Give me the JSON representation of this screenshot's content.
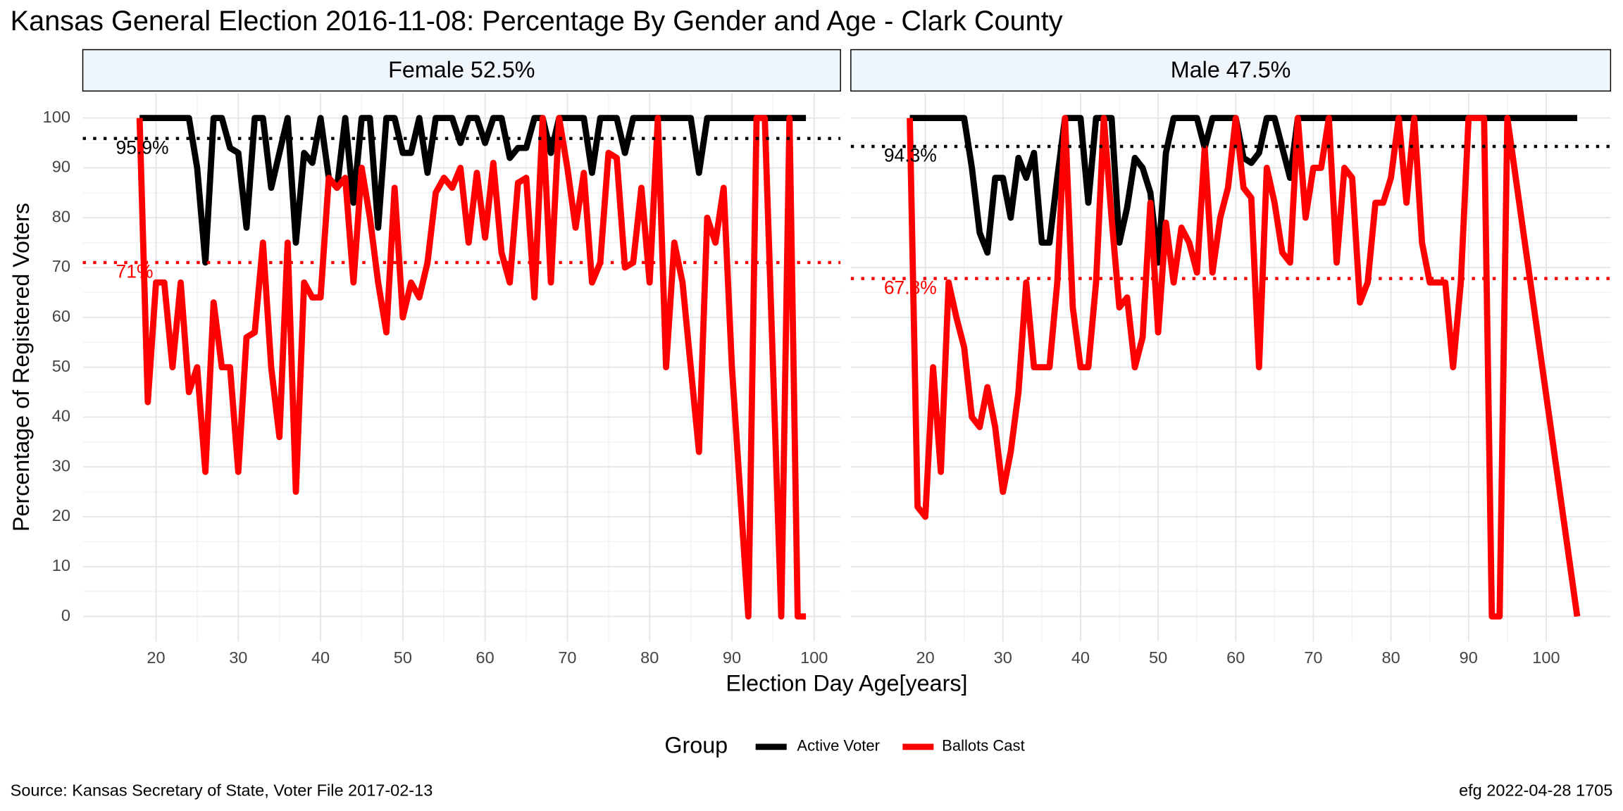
{
  "title": "Kansas General Election 2016-11-08:  Percentage By Gender and Age - Clark County",
  "x_label": "Election Day Age[years]",
  "y_label": "Percentage of Registered Voters",
  "legend_title": "Group",
  "source": "Source:  Kansas Secretary of State, Voter File  2017-02-13",
  "stamp": "efg 2022-04-28 1705",
  "chart_data": [
    {
      "type": "line",
      "title": "Female 52.5%",
      "xlim": [
        11.1,
        103.2
      ],
      "ylim": [
        -5,
        105
      ],
      "xticks": [
        20,
        30,
        40,
        50,
        60,
        70,
        80,
        90,
        100
      ],
      "yticks": [
        0,
        10,
        20,
        30,
        40,
        50,
        60,
        70,
        80,
        90,
        100
      ],
      "grid": true,
      "hlines": [
        {
          "value": 95.9,
          "label": "95.9%",
          "color": "#000000"
        },
        {
          "value": 71,
          "label": "71%",
          "color": "#ff0000"
        }
      ],
      "series": [
        {
          "name": "Active Voter",
          "color": "#000000",
          "x": [
            18,
            19,
            20,
            21,
            22,
            23,
            24,
            25,
            26,
            27,
            28,
            29,
            30,
            31,
            32,
            33,
            34,
            35,
            36,
            37,
            38,
            39,
            40,
            41,
            42,
            43,
            44,
            45,
            46,
            47,
            48,
            49,
            50,
            51,
            52,
            53,
            54,
            55,
            56,
            57,
            58,
            59,
            60,
            61,
            62,
            63,
            64,
            65,
            66,
            67,
            68,
            69,
            70,
            71,
            72,
            73,
            74,
            75,
            76,
            77,
            78,
            79,
            80,
            81,
            82,
            83,
            84,
            85,
            86,
            87,
            88,
            89,
            90,
            91,
            92,
            93,
            94,
            95,
            96,
            97,
            98,
            99
          ],
          "values": [
            100,
            100,
            100,
            100,
            100,
            100,
            100,
            90,
            71,
            100,
            100,
            94,
            93,
            78,
            100,
            100,
            86,
            93,
            100,
            75,
            93,
            91,
            100,
            88,
            86,
            100,
            83,
            100,
            100,
            78,
            100,
            100,
            93,
            93,
            100,
            89,
            100,
            100,
            100,
            95,
            100,
            100,
            95,
            100,
            100,
            92,
            94,
            94,
            100,
            100,
            93,
            100,
            100,
            100,
            100,
            89,
            100,
            100,
            100,
            93,
            100,
            100,
            100,
            100,
            100,
            100,
            100,
            100,
            89,
            100,
            100,
            100,
            100,
            100,
            100,
            100,
            100,
            100,
            100,
            100,
            100,
            100
          ]
        },
        {
          "name": "Ballots Cast",
          "color": "#ff0000",
          "x": [
            18,
            19,
            20,
            21,
            22,
            23,
            24,
            25,
            26,
            27,
            28,
            29,
            30,
            31,
            32,
            33,
            34,
            35,
            36,
            37,
            38,
            39,
            40,
            41,
            42,
            43,
            44,
            45,
            46,
            47,
            48,
            49,
            50,
            51,
            52,
            53,
            54,
            55,
            56,
            57,
            58,
            59,
            60,
            61,
            62,
            63,
            64,
            65,
            66,
            67,
            68,
            69,
            70,
            71,
            72,
            73,
            74,
            75,
            76,
            77,
            78,
            79,
            80,
            81,
            82,
            83,
            84,
            85,
            86,
            87,
            88,
            89,
            90,
            91,
            92,
            93,
            94,
            95,
            96,
            97,
            98,
            99
          ],
          "values": [
            100,
            43,
            67,
            67,
            50,
            67,
            45,
            50,
            29,
            63,
            50,
            50,
            29,
            56,
            57,
            75,
            50,
            36,
            75,
            25,
            67,
            64,
            64,
            88,
            86,
            88,
            67,
            90,
            80,
            67,
            57,
            86,
            60,
            67,
            64,
            71,
            85,
            88,
            86,
            90,
            75,
            89,
            76,
            91,
            73,
            67,
            87,
            88,
            64,
            100,
            67,
            100,
            90,
            78,
            89,
            67,
            71,
            93,
            92,
            70,
            71,
            86,
            67,
            100,
            50,
            75,
            67,
            50,
            33,
            80,
            75,
            86,
            50,
            25,
            0,
            100,
            100,
            50,
            0,
            100,
            0,
            0
          ]
        }
      ]
    },
    {
      "type": "line",
      "title": "Male 47.5%",
      "xlim": [
        10.4,
        108.3
      ],
      "ylim": [
        -5,
        105
      ],
      "xticks": [
        20,
        30,
        40,
        50,
        60,
        70,
        80,
        90,
        100
      ],
      "yticks": [
        0,
        10,
        20,
        30,
        40,
        50,
        60,
        70,
        80,
        90,
        100
      ],
      "grid": true,
      "hlines": [
        {
          "value": 94.3,
          "label": "94.3%",
          "color": "#000000"
        },
        {
          "value": 67.8,
          "label": "67.8%",
          "color": "#ff0000"
        }
      ],
      "series": [
        {
          "name": "Active Voter",
          "color": "#000000",
          "x": [
            18,
            19,
            20,
            21,
            22,
            23,
            24,
            25,
            26,
            27,
            28,
            29,
            30,
            31,
            32,
            33,
            34,
            35,
            36,
            37,
            38,
            39,
            40,
            41,
            42,
            43,
            44,
            45,
            46,
            47,
            48,
            49,
            50,
            51,
            52,
            53,
            54,
            55,
            56,
            57,
            58,
            59,
            60,
            61,
            62,
            63,
            64,
            65,
            66,
            67,
            68,
            104
          ],
          "values": [
            100,
            100,
            100,
            100,
            100,
            100,
            100,
            100,
            90,
            77,
            73,
            88,
            88,
            80,
            92,
            88,
            93,
            75,
            75,
            88,
            100,
            100,
            100,
            83,
            100,
            100,
            100,
            75,
            82,
            92,
            90,
            85,
            71,
            93,
            100,
            100,
            100,
            100,
            94,
            100,
            100,
            100,
            100,
            92,
            91,
            93,
            100,
            100,
            94,
            88,
            100,
            100
          ]
        },
        {
          "name": "Ballots Cast",
          "color": "#ff0000",
          "x": [
            18,
            19,
            20,
            21,
            22,
            23,
            24,
            25,
            26,
            27,
            28,
            29,
            30,
            31,
            32,
            33,
            34,
            35,
            36,
            37,
            38,
            39,
            40,
            41,
            42,
            43,
            44,
            45,
            46,
            47,
            48,
            49,
            50,
            51,
            52,
            53,
            54,
            55,
            56,
            57,
            58,
            59,
            60,
            61,
            62,
            63,
            64,
            65,
            66,
            67,
            68,
            69,
            70,
            71,
            72,
            73,
            74,
            75,
            76,
            77,
            78,
            79,
            80,
            81,
            82,
            83,
            84,
            85,
            86,
            87,
            88,
            89,
            90,
            91,
            92,
            93,
            94,
            95,
            104
          ],
          "values": [
            100,
            22,
            20,
            50,
            29,
            67,
            60,
            54,
            40,
            38,
            46,
            38,
            25,
            33,
            45,
            67,
            50,
            50,
            50,
            67,
            100,
            62,
            50,
            50,
            67,
            100,
            80,
            62,
            64,
            50,
            56,
            83,
            57,
            79,
            67,
            78,
            75,
            69,
            94,
            69,
            80,
            86,
            100,
            86,
            84,
            50,
            90,
            83,
            73,
            71,
            100,
            80,
            90,
            90,
            100,
            71,
            90,
            88,
            63,
            67,
            83,
            83,
            88,
            100,
            83,
            100,
            75,
            67,
            67,
            67,
            50,
            67,
            100,
            100,
            100,
            0,
            0,
            100,
            0
          ]
        }
      ]
    }
  ]
}
